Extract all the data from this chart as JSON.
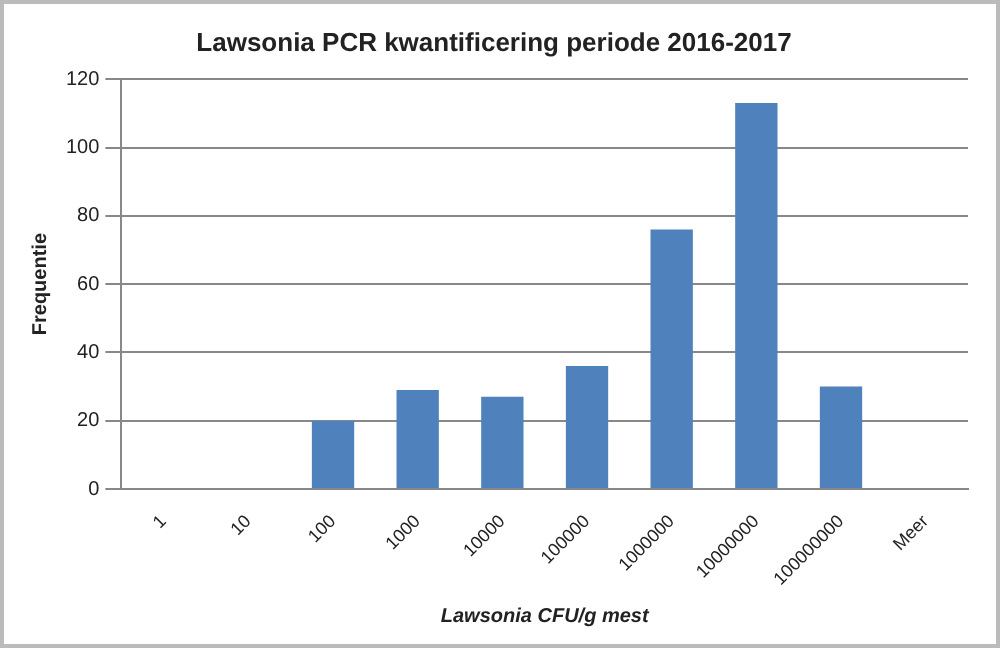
{
  "chart_data": {
    "type": "bar",
    "title": "Lawsonia PCR kwantificering periode 2016-2017",
    "xlabel": "Lawsonia CFU/g mest",
    "ylabel": "Frequentie",
    "categories": [
      "1",
      "10",
      "100",
      "1000",
      "10000",
      "100000",
      "1000000",
      "10000000",
      "100000000",
      "Meer"
    ],
    "values": [
      0,
      0,
      20,
      29,
      27,
      36,
      76,
      113,
      30,
      0
    ],
    "color": "#4f81bd",
    "ylim": [
      0,
      120
    ],
    "yticks": [
      0,
      20,
      40,
      60,
      80,
      100,
      120
    ],
    "grid": "y",
    "legend": false
  }
}
